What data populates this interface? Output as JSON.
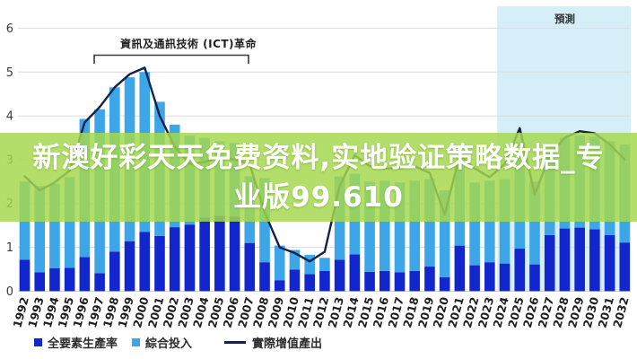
{
  "banner": {
    "line1": "新澳好彩天天免费资料,实地验证策略数据_专",
    "line2": "业版99.610",
    "bg_color": "#a6d84e",
    "bg_opacity": 0.84,
    "text_color": "#ffffff"
  },
  "chart_data": {
    "type": "bar",
    "subtype": "stacked-bars-with-line-overlay",
    "title": "",
    "xlabel": "",
    "ylabel": "",
    "ylim": [
      0,
      6
    ],
    "yticks": [
      0,
      1,
      2,
      3,
      4,
      5,
      6
    ],
    "grid": "horizontal",
    "legend_position": "bottom-left",
    "categories": [
      1992,
      1993,
      1994,
      1995,
      1996,
      1997,
      1998,
      1999,
      2000,
      2001,
      2002,
      2003,
      2004,
      2005,
      2006,
      2007,
      2008,
      2009,
      2010,
      2011,
      2012,
      2013,
      2014,
      2015,
      2016,
      2017,
      2018,
      2019,
      2020,
      2021,
      2022,
      2023,
      2024,
      2025,
      2026,
      2027,
      2028,
      2029,
      2030,
      2031,
      2032
    ],
    "series": [
      {
        "name": "全要素生產率",
        "type": "bar-bottom-segment",
        "color": "#1126cd",
        "values": [
          0.72,
          0.43,
          0.52,
          0.53,
          0.78,
          0.41,
          0.9,
          1.14,
          1.35,
          1.26,
          1.46,
          1.52,
          1.68,
          1.72,
          1.7,
          1.1,
          0.66,
          0.25,
          0.49,
          0.39,
          0.46,
          0.72,
          0.84,
          0.44,
          0.46,
          0.43,
          0.46,
          0.56,
          0.32,
          1.04,
          0.59,
          0.66,
          0.63,
          0.97,
          0.61,
          1.28,
          1.43,
          1.45,
          1.41,
          1.28,
          1.11
        ]
      },
      {
        "name": "綜合投入",
        "type": "bar-top-segment",
        "color": "#3da6e8",
        "values": [
          1.78,
          1.97,
          1.93,
          2.07,
          3.15,
          3.74,
          3.75,
          3.74,
          3.65,
          3.06,
          2.34,
          2.03,
          1.82,
          1.7,
          1.68,
          1.52,
          1.92,
          0.79,
          0.45,
          0.44,
          0.3,
          1.9,
          1.84,
          2.06,
          2.06,
          2.05,
          2.06,
          2.0,
          1.98,
          1.86,
          1.89,
          1.86,
          1.92,
          2.43,
          1.89,
          2.02,
          2.07,
          2.1,
          2.11,
          2.14,
          2.24
        ]
      },
      {
        "name": "實際增值產出",
        "type": "line",
        "color": "#14224a",
        "values": [
          2.62,
          2.3,
          2.48,
          2.75,
          3.85,
          4.2,
          4.65,
          4.95,
          5.1,
          4.0,
          3.3,
          2.9,
          2.95,
          3.05,
          3.0,
          2.9,
          1.8,
          1.0,
          0.87,
          0.68,
          0.9,
          2.4,
          3.1,
          2.85,
          2.8,
          2.8,
          2.85,
          2.7,
          1.75,
          3.1,
          2.8,
          2.6,
          2.9,
          3.72,
          2.2,
          3.1,
          3.5,
          3.65,
          3.6,
          3.35,
          3.0
        ]
      }
    ],
    "annotations": {
      "bracket_label": "資訊及通訊技術 (ICT)革命",
      "bracket_year_span": [
        1996,
        2007
      ],
      "forecast_label": "預測",
      "forecast_start_year": 2024
    },
    "colors": {
      "forecast_bg": "#d6eef7",
      "gridline": "#dcdcdc",
      "axis_text": "#3a3a3a",
      "tick_text": "#1f1f1f",
      "bracket": "#3a3a3a"
    }
  },
  "legend": {
    "items": [
      {
        "label": "全要素生產率",
        "swatch": "square-dark-blue"
      },
      {
        "label": "綜合投入",
        "swatch": "square-light-blue"
      },
      {
        "label": "實際增值產出",
        "swatch": "line-navy"
      }
    ]
  }
}
